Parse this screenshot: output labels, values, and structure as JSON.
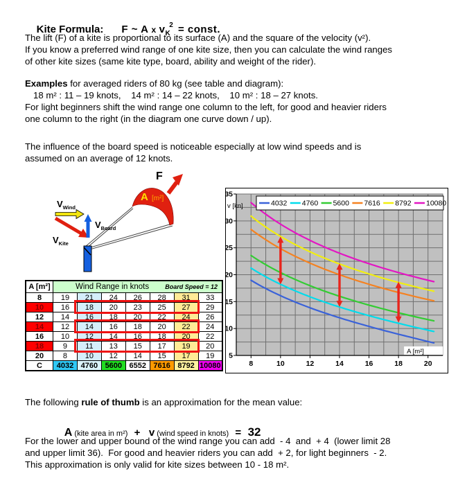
{
  "title": {
    "label": "Kite Formula:",
    "f": "F",
    "tilde": "~",
    "a": "A",
    "x": "x",
    "v": "v",
    "sub": "K",
    "sup": "2",
    "eq": "=",
    "const": "const."
  },
  "intro": {
    "lines": [
      "The lift (F) of a kite is proportional to its surface (A) and the square of the velocity (v²).",
      "If you know a preferred wind range of one kite size, then you can calculate the wind ranges",
      "of other kite sizes (same kite type, board, ability and weight of the rider)."
    ]
  },
  "examples": {
    "bold": "Examples",
    "intro_rest": " for averaged riders of 80 kg (see table and diagram):",
    "sizes": "18 m² : 11 – 19 knots,    14 m² : 14 – 22 knots,    10 m² : 18 – 27 knots.",
    "lines": [
      "For light beginners shift the wind range one column to the left, for good and heavier riders",
      "one column to the right (in the diagram one curve down / up)."
    ]
  },
  "board_note": {
    "lines": [
      "The influence of the board speed is noticeable especially at low wind speeds and is",
      "assumed on an average of 12 knots."
    ]
  },
  "diagram": {
    "force_label": "F",
    "area_label": "A",
    "area_unit": "[m²]",
    "v": "V",
    "wind_sub": "Wind",
    "kite_sub": "Kite",
    "board_sub": "Board",
    "colors": {
      "red": "#e02010",
      "yellow": "#f2e410",
      "blue": "#1560e0",
      "area_text": "#ffe000",
      "area_unit_text": "#ffaa00",
      "line": "#444444"
    }
  },
  "table": {
    "header": {
      "area": "A [m²]",
      "range": "Wind Range in knots",
      "board": "Board Speed = 12"
    },
    "rows": [
      {
        "area": "8",
        "red": false,
        "values": [
          "19",
          "21",
          "24",
          "26",
          "28",
          "31",
          "33"
        ]
      },
      {
        "area": "10",
        "red": true,
        "values": [
          "16",
          "18",
          "20",
          "23",
          "25",
          "27",
          "29"
        ]
      },
      {
        "area": "12",
        "red": false,
        "values": [
          "14",
          "16",
          "18",
          "20",
          "22",
          "24",
          "26"
        ]
      },
      {
        "area": "14",
        "red": true,
        "values": [
          "12",
          "14",
          "16",
          "18",
          "20",
          "22",
          "24"
        ]
      },
      {
        "area": "16",
        "red": false,
        "values": [
          "10",
          "12",
          "14",
          "16",
          "18",
          "20",
          "22"
        ]
      },
      {
        "area": "18",
        "red": true,
        "values": [
          "9",
          "11",
          "13",
          "15",
          "17",
          "19",
          "20"
        ]
      },
      {
        "area": "20",
        "red": false,
        "values": [
          "8",
          "10",
          "12",
          "14",
          "15",
          "17",
          "19"
        ]
      }
    ],
    "c_row": {
      "label": "C",
      "cells": [
        {
          "text": "4032",
          "bg": "#2fc8f5"
        },
        {
          "text": "4760",
          "bg": "#dcf4fb"
        },
        {
          "text": "5600",
          "bg": "#21dd21"
        },
        {
          "text": "6552",
          "bg": "#ffffff"
        },
        {
          "text": "7616",
          "bg": "#ff9a00"
        },
        {
          "text": "8792",
          "bg": "#fff3a0"
        },
        {
          "text": "10080",
          "bg": "#f000f0"
        }
      ]
    },
    "col_highlights": {
      "cyan_col": 1,
      "yellow_col": 5,
      "cyan": "#d5eefa",
      "yellow": "#ffeb96"
    },
    "outline_span": [
      1,
      5
    ]
  },
  "chart_data": {
    "type": "line",
    "title": "",
    "xlabel": "A [m²]",
    "ylabel": "v [kn]",
    "xlim": [
      7,
      21
    ],
    "ylim": [
      5,
      35
    ],
    "x_ticks": [
      8,
      10,
      12,
      14,
      16,
      18,
      20
    ],
    "y_ticks": [
      5,
      10,
      15,
      20,
      25,
      30,
      35
    ],
    "grid": {
      "x_step": 1,
      "y_step": 2.5,
      "on": true
    },
    "plot_bg": "#c0c0c0",
    "grid_color": "#6f6f6f",
    "legend_position": "top-inside",
    "categories": [
      8,
      10,
      12,
      14,
      16,
      18,
      20
    ],
    "series": [
      {
        "name": "4032",
        "C": 4032,
        "color": "#3a62d9",
        "values": [
          19,
          16,
          14,
          12,
          10,
          9,
          8
        ]
      },
      {
        "name": "4760",
        "C": 4760,
        "color": "#00dcec",
        "values": [
          21,
          18,
          16,
          14,
          12,
          11,
          10
        ]
      },
      {
        "name": "5600",
        "C": 5600,
        "color": "#33cc33",
        "values": [
          24,
          20,
          18,
          16,
          14,
          13,
          12
        ]
      },
      {
        "name": "7616",
        "C": 7616,
        "color": "#f58220",
        "values": [
          28,
          25,
          22,
          20,
          18,
          17,
          15
        ]
      },
      {
        "name": "8792",
        "C": 8792,
        "color": "#f2ee0f",
        "values": [
          31,
          27,
          24,
          22,
          20,
          19,
          17
        ]
      },
      {
        "name": "10080",
        "C": 10080,
        "color": "#e316c3",
        "values": [
          33,
          29,
          26,
          24,
          22,
          20,
          19
        ]
      }
    ],
    "arrows": [
      {
        "x": 10,
        "from": 18.2,
        "to": 27.1
      },
      {
        "x": 14,
        "from": 14.0,
        "to": 22.1
      },
      {
        "x": 18,
        "from": 11.1,
        "to": 18.7
      }
    ],
    "arrow_color": "#e8251d"
  },
  "rule": {
    "pre": "The following ",
    "bold": "rule of thumb",
    "post": " is an approximation for the mean value:"
  },
  "formula": {
    "a": "A",
    "a_note": " (kite area in m²)   ",
    "plus": "+",
    "v": "   v",
    "v_note": " (wind speed in knots)   ",
    "eq": "=",
    "value": "  32"
  },
  "footer": {
    "lines": [
      "For the lower and upper bound of the wind range you can add  - 4  and  + 4  (lower limit 28",
      "and upper limit 36).  For good and heavier riders you can add  + 2, for light beginners  - 2.",
      "This approximation is only valid for kite sizes between 10 - 18 m²."
    ]
  }
}
